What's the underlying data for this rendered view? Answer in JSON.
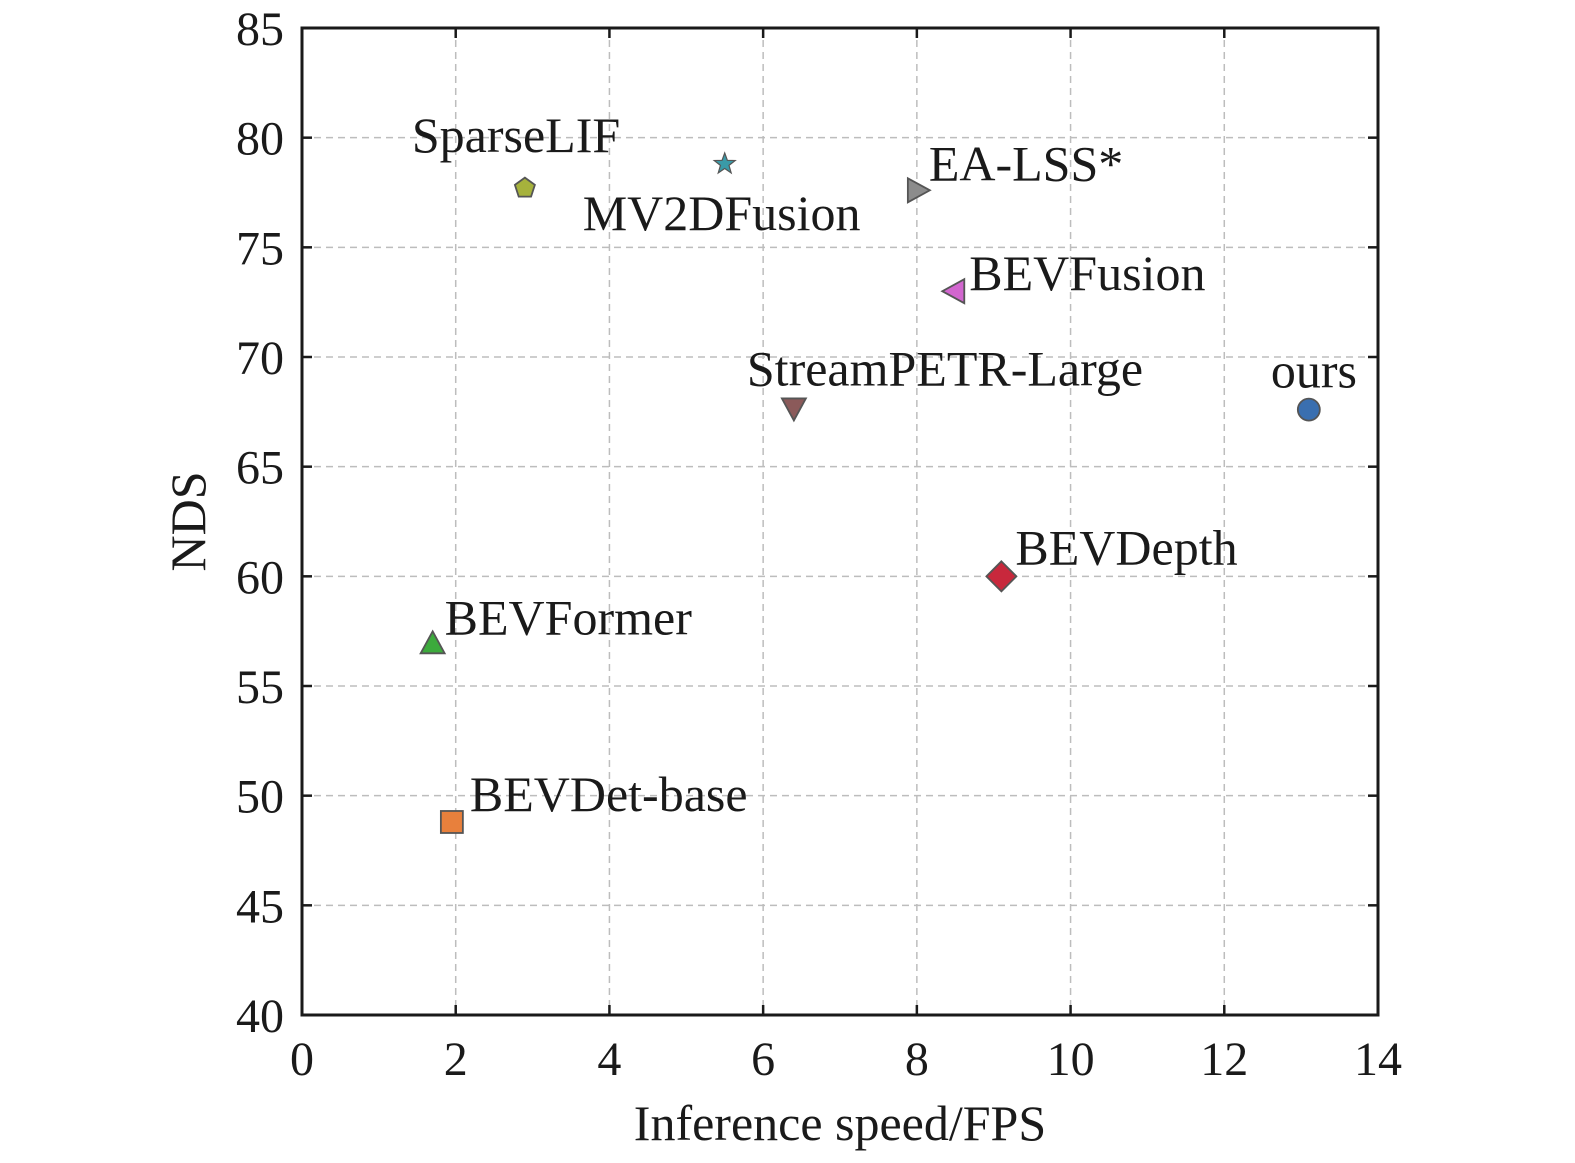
{
  "chart_data": {
    "type": "scatter",
    "title": "",
    "xlabel": "Inference speed/FPS",
    "ylabel": "NDS",
    "xlim": [
      0,
      14
    ],
    "ylim": [
      40,
      85
    ],
    "xticks": [
      0,
      2,
      4,
      6,
      8,
      10,
      12,
      14
    ],
    "yticks": [
      40,
      45,
      50,
      55,
      60,
      65,
      70,
      75,
      80,
      85
    ],
    "xtick_labels": [
      "0",
      "2",
      "4",
      "6",
      "8",
      "10",
      "12",
      "14"
    ],
    "ytick_labels": [
      "40",
      "45",
      "50",
      "55",
      "60",
      "65",
      "70",
      "75",
      "80",
      "85"
    ],
    "grid": true,
    "points": [
      {
        "label": "SparseLIF",
        "x": 2.9,
        "y": 77.7,
        "marker": "pentagon",
        "color": "#a6b23c",
        "label_pos": "above-left"
      },
      {
        "label": "MV2DFusion",
        "x": 5.5,
        "y": 78.8,
        "marker": "star",
        "color": "#3a9aa8",
        "label_pos": "below-right"
      },
      {
        "label": "EA-LSS*",
        "x": 8.0,
        "y": 77.6,
        "marker": "triangle-right",
        "color": "#8c8c8c",
        "label_pos": "above-right"
      },
      {
        "label": "BEVFusion",
        "x": 8.5,
        "y": 73.0,
        "marker": "triangle-left",
        "color": "#d266cf",
        "label_pos": "right"
      },
      {
        "label": "StreamPETR-Large",
        "x": 6.4,
        "y": 67.7,
        "marker": "triangle-down",
        "color": "#8b5a5a",
        "label_pos": "above"
      },
      {
        "label": "ours",
        "x": 13.1,
        "y": 67.6,
        "marker": "circle",
        "color": "#3a6fb0",
        "label_pos": "above"
      },
      {
        "label": "BEVDepth",
        "x": 9.1,
        "y": 60.0,
        "marker": "diamond",
        "color": "#c8283c",
        "label_pos": "above-right"
      },
      {
        "label": "BEVFormer",
        "x": 1.7,
        "y": 56.9,
        "marker": "triangle-up",
        "color": "#3caa3c",
        "label_pos": "above-right"
      },
      {
        "label": "BEVDet-base",
        "x": 1.95,
        "y": 48.8,
        "marker": "square",
        "color": "#e8803c",
        "label_pos": "above-right"
      }
    ]
  }
}
